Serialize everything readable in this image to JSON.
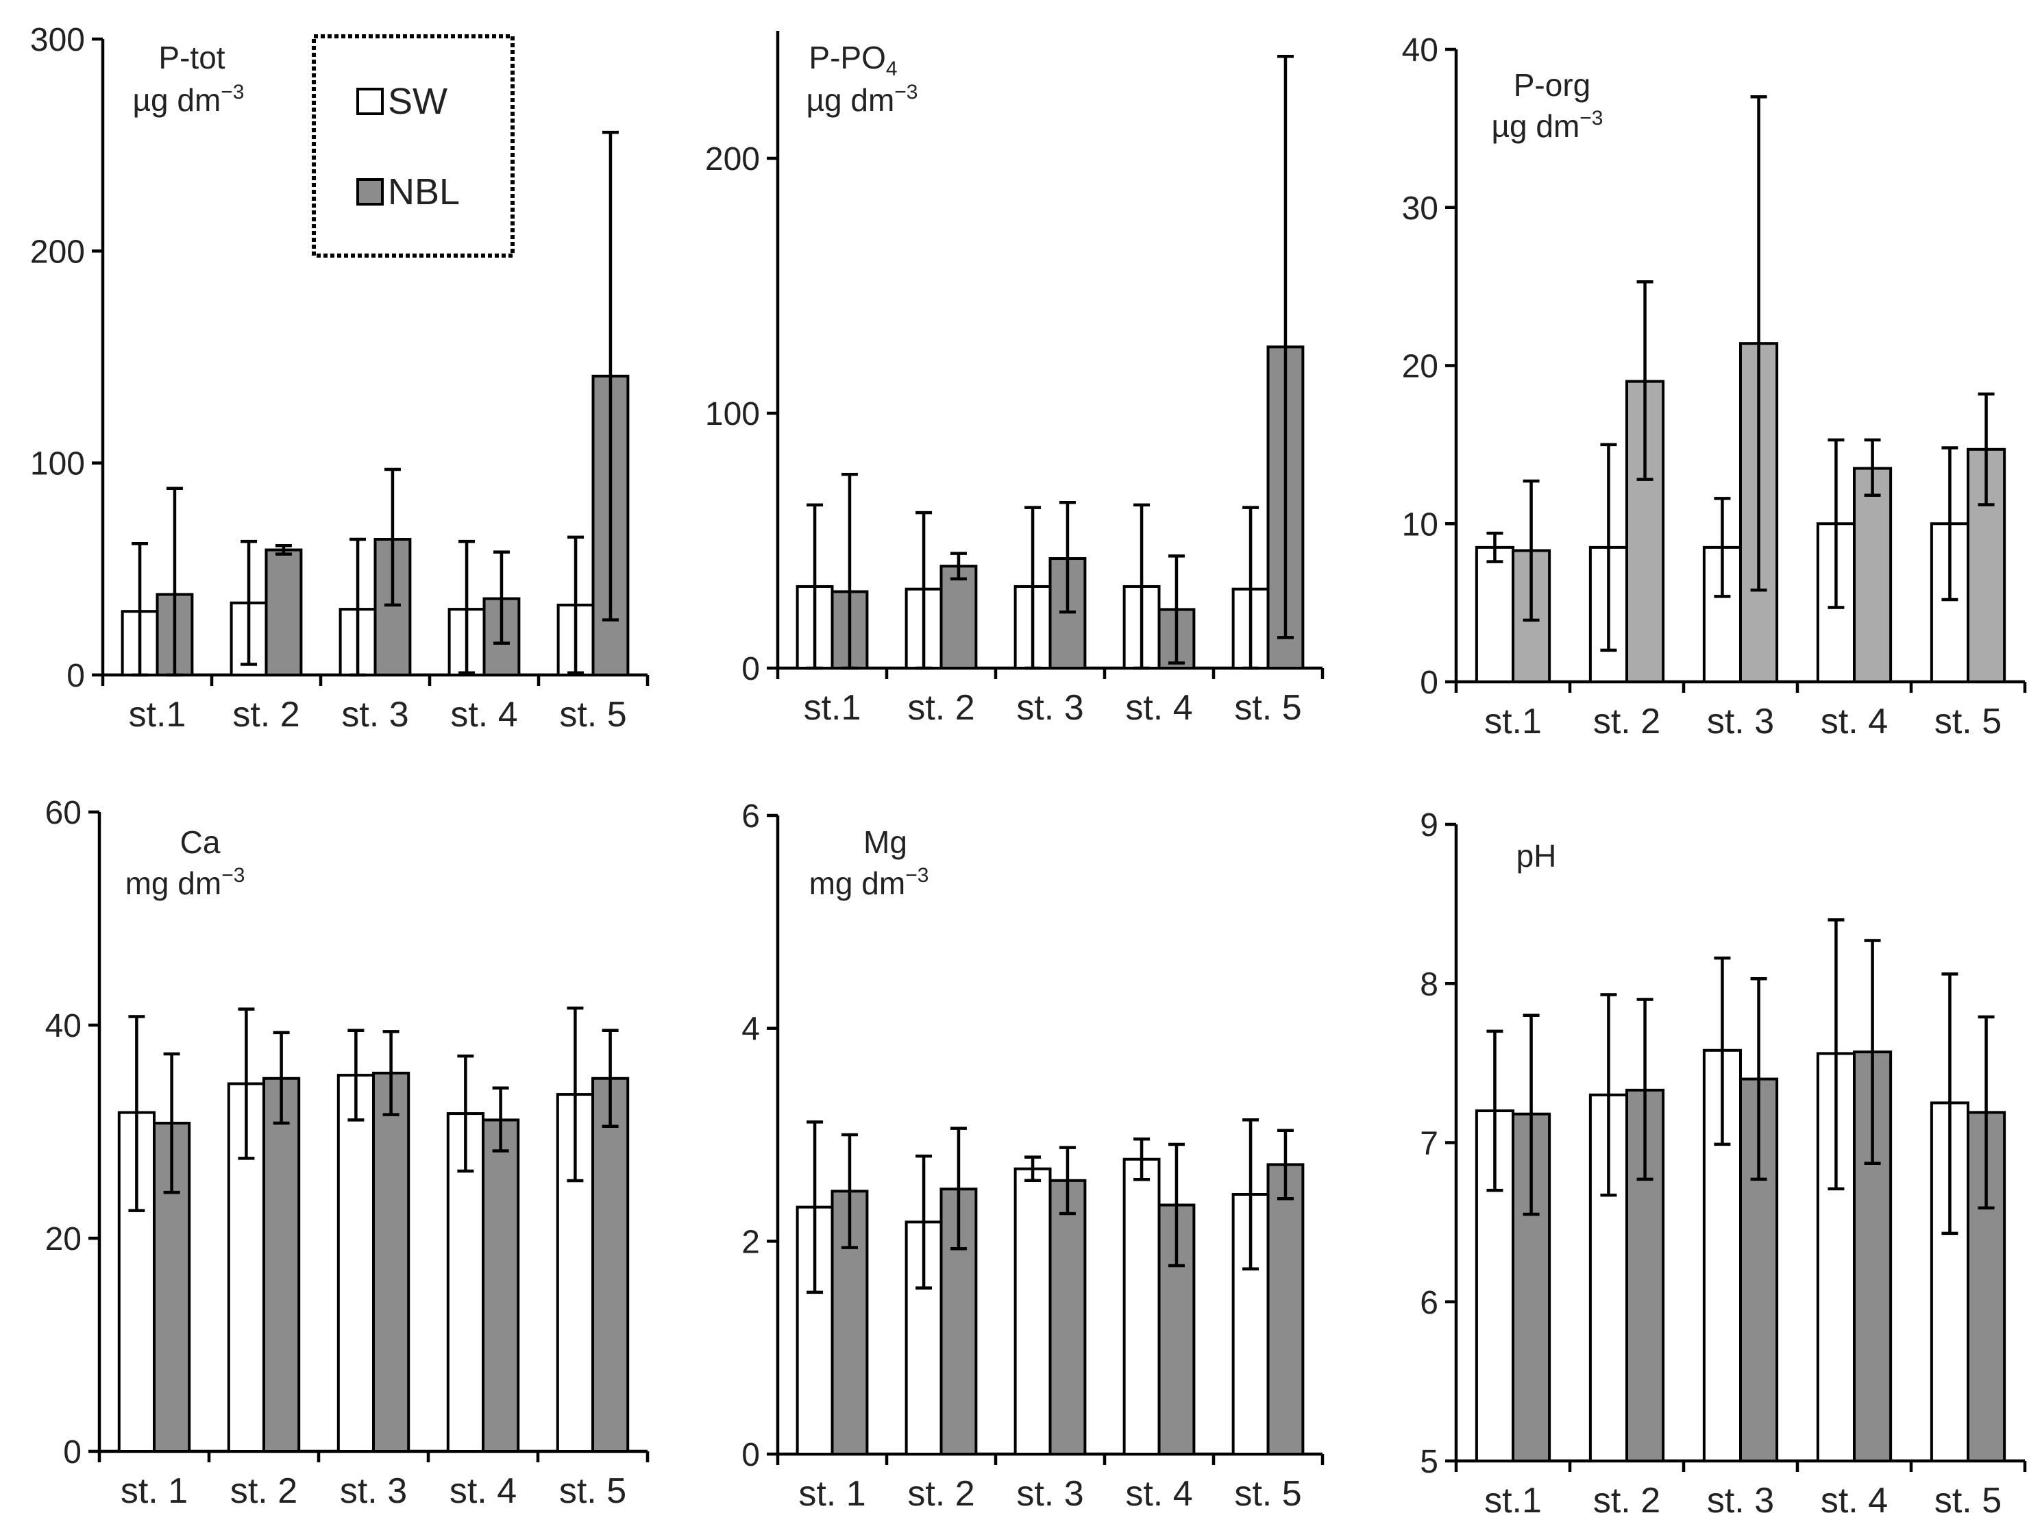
{
  "colors": {
    "sw": "#ffffff",
    "nbl": "#8c8c8c",
    "nbl_light": "#ababab",
    "axis": "#000000"
  },
  "legend": {
    "items": [
      {
        "label": "SW",
        "color": "#ffffff"
      },
      {
        "label": "NBL",
        "color": "#8c8c8c"
      }
    ]
  },
  "chart_data": [
    {
      "id": "ptot",
      "type": "bar",
      "title": "P-tot",
      "unit": "µg dm",
      "unit_sup": "−3",
      "categories": [
        "st.1",
        "st. 2",
        "st. 3",
        "st. 4",
        "st. 5"
      ],
      "ylim": [
        0,
        300
      ],
      "yticks": [
        0,
        100,
        200,
        300
      ],
      "series": [
        {
          "name": "SW",
          "color": "#ffffff",
          "values": [
            30,
            34,
            31,
            31,
            33
          ],
          "err_low": [
            0,
            5,
            0,
            1,
            1
          ],
          "err_high": [
            62,
            63,
            64,
            63,
            65
          ]
        },
        {
          "name": "NBL",
          "color": "#8c8c8c",
          "values": [
            38,
            59,
            64,
            36,
            141
          ],
          "err_low": [
            0,
            57,
            33,
            15,
            26
          ],
          "err_high": [
            88,
            61,
            97,
            58,
            256
          ]
        }
      ]
    },
    {
      "id": "ppo4",
      "type": "bar",
      "title": "P-PO",
      "title_sub": "4",
      "unit": "µg dm",
      "unit_sup": "−3",
      "categories": [
        "st.1",
        "st. 2",
        "st. 3",
        "st. 4",
        "st. 5"
      ],
      "ylim": [
        0,
        250
      ],
      "yticks": [
        0,
        100,
        200
      ],
      "series": [
        {
          "name": "SW",
          "color": "#ffffff",
          "values": [
            32,
            31,
            32,
            32,
            31
          ],
          "err_low": [
            0,
            0,
            0,
            0,
            0
          ],
          "err_high": [
            64,
            61,
            63,
            64,
            63
          ]
        },
        {
          "name": "NBL",
          "color": "#8c8c8c",
          "values": [
            30,
            40,
            43,
            23,
            126
          ],
          "err_low": [
            0,
            35,
            22,
            2,
            12
          ],
          "err_high": [
            76,
            45,
            65,
            44,
            240
          ]
        }
      ]
    },
    {
      "id": "porg",
      "type": "bar",
      "title": "P-org",
      "unit": "µg dm",
      "unit_sup": "−3",
      "categories": [
        "st.1",
        "st. 2",
        "st. 3",
        "st. 4",
        "st. 5"
      ],
      "ylim": [
        0,
        40
      ],
      "yticks": [
        0,
        10,
        20,
        30,
        40
      ],
      "series": [
        {
          "name": "SW",
          "color": "#ffffff",
          "values": [
            8.5,
            8.5,
            8.5,
            10,
            10
          ],
          "err_low": [
            7.6,
            2,
            5.4,
            4.7,
            5.2
          ],
          "err_high": [
            9.4,
            15,
            11.6,
            15.3,
            14.8
          ]
        },
        {
          "name": "NBL",
          "color": "#ababab",
          "values": [
            8.3,
            19,
            21.4,
            13.5,
            14.7
          ],
          "err_low": [
            3.9,
            12.8,
            5.8,
            11.8,
            11.2
          ],
          "err_high": [
            12.7,
            25.3,
            37,
            15.3,
            18.2
          ]
        }
      ]
    },
    {
      "id": "ca",
      "type": "bar",
      "title": "Ca",
      "unit": "mg dm",
      "unit_sup": "−3",
      "categories": [
        "st. 1",
        "st. 2",
        "st. 3",
        "st. 4",
        "st. 5"
      ],
      "ylim": [
        0,
        60
      ],
      "yticks": [
        0,
        20,
        40,
        60
      ],
      "series": [
        {
          "name": "SW",
          "color": "#ffffff",
          "values": [
            31.8,
            34.5,
            35.3,
            31.7,
            33.5
          ],
          "err_low": [
            22.6,
            27.5,
            31.1,
            26.3,
            25.4
          ],
          "err_high": [
            40.8,
            41.5,
            39.5,
            37.1,
            41.6
          ]
        },
        {
          "name": "NBL",
          "color": "#8c8c8c",
          "values": [
            30.8,
            35,
            35.5,
            31.1,
            35
          ],
          "err_low": [
            24.3,
            30.8,
            31.6,
            28.2,
            30.5
          ],
          "err_high": [
            37.3,
            39.3,
            39.4,
            34.1,
            39.5
          ]
        }
      ]
    },
    {
      "id": "mg",
      "type": "bar",
      "title": "Mg",
      "unit": "mg dm",
      "unit_sup": "−3",
      "categories": [
        "st. 1",
        "st. 2",
        "st. 3",
        "st. 4",
        "st. 5"
      ],
      "ylim": [
        0,
        6
      ],
      "yticks": [
        0,
        2,
        4,
        6
      ],
      "series": [
        {
          "name": "SW",
          "color": "#ffffff",
          "values": [
            2.32,
            2.18,
            2.68,
            2.77,
            2.44
          ],
          "err_low": [
            1.52,
            1.56,
            2.57,
            2.58,
            1.74
          ],
          "err_high": [
            3.12,
            2.8,
            2.79,
            2.96,
            3.14
          ]
        },
        {
          "name": "NBL",
          "color": "#8c8c8c",
          "values": [
            2.47,
            2.49,
            2.57,
            2.34,
            2.72
          ],
          "err_low": [
            1.94,
            1.93,
            2.26,
            1.77,
            2.4
          ],
          "err_high": [
            3.0,
            3.06,
            2.88,
            2.91,
            3.04
          ]
        }
      ]
    },
    {
      "id": "ph",
      "type": "bar",
      "title": "pH",
      "unit": "",
      "unit_sup": "",
      "categories": [
        "st.1",
        "st. 2",
        "st. 3",
        "st. 4",
        "st. 5"
      ],
      "ylim": [
        5,
        9
      ],
      "yticks": [
        5,
        6,
        7,
        8,
        9
      ],
      "series": [
        {
          "name": "SW",
          "color": "#ffffff",
          "values": [
            7.2,
            7.3,
            7.58,
            7.56,
            7.25
          ],
          "err_low": [
            6.7,
            6.67,
            6.99,
            6.71,
            6.43
          ],
          "err_high": [
            7.7,
            7.93,
            8.16,
            8.4,
            8.06
          ]
        },
        {
          "name": "NBL",
          "color": "#8c8c8c",
          "values": [
            7.18,
            7.33,
            7.4,
            7.57,
            7.19
          ],
          "err_low": [
            6.55,
            6.77,
            6.77,
            6.87,
            6.59
          ],
          "err_high": [
            7.8,
            7.9,
            8.03,
            8.27,
            7.79
          ]
        }
      ]
    }
  ]
}
